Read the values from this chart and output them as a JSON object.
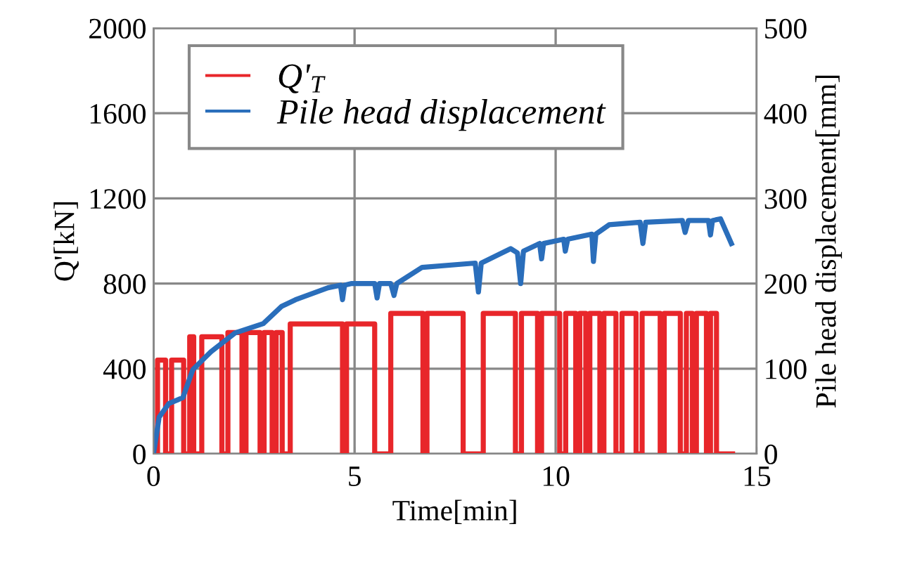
{
  "chart_data": {
    "type": "line",
    "xlabel": "Time[min]",
    "ylabel": "Q'[kN]",
    "y2label": "Pile head displacement[mm]",
    "xlim": [
      0,
      15
    ],
    "xticks": [
      0,
      5,
      10,
      15
    ],
    "ylim": [
      0,
      2000
    ],
    "yticks": [
      0,
      400,
      800,
      1200,
      1600,
      2000
    ],
    "y2lim": [
      0,
      500
    ],
    "y2ticks": [
      0,
      100,
      200,
      300,
      400,
      500
    ],
    "grid": true,
    "legend": "top left",
    "series": [
      {
        "name": "Q'$_{T}$",
        "color": "#e8262a",
        "type": "step",
        "x": [
          0,
          0.1,
          0.3,
          0.45,
          0.75,
          0.9,
          1.0,
          1.2,
          1.7,
          1.85,
          2.2,
          2.3,
          2.65,
          2.75,
          2.95,
          3.05,
          3.2,
          3.4,
          4.7,
          4.8,
          5.5,
          5.9,
          6.7,
          6.8,
          7.7,
          8.2,
          9.0,
          9.15,
          9.55,
          9.65,
          10.1,
          10.25,
          10.5,
          10.6,
          10.75,
          10.85,
          11.1,
          11.2,
          11.5,
          11.65,
          12.0,
          12.15,
          12.6,
          12.7,
          13.1,
          13.25,
          13.4,
          13.5,
          13.75,
          13.85,
          14.0,
          14.4
        ],
        "values": [
          0,
          440,
          0,
          440,
          0,
          550,
          0,
          550,
          0,
          570,
          0,
          570,
          0,
          570,
          0,
          570,
          0,
          610,
          0,
          610,
          0,
          660,
          0,
          660,
          0,
          660,
          0,
          660,
          0,
          660,
          0,
          660,
          0,
          660,
          0,
          660,
          0,
          660,
          0,
          660,
          0,
          660,
          0,
          660,
          0,
          660,
          0,
          660,
          0,
          660,
          0,
          0
        ]
      },
      {
        "name": "Pile head displacement",
        "color": "#2a6ebb",
        "axis": "y2",
        "x": [
          0,
          0.14,
          0.38,
          0.73,
          0.98,
          1.43,
          2.03,
          2.73,
          3.18,
          3.53,
          4.34,
          4.65,
          4.7,
          4.75,
          4.93,
          5.5,
          5.56,
          5.62,
          5.9,
          5.98,
          6.05,
          6.68,
          8.0,
          8.08,
          8.15,
          8.88,
          9.05,
          9.13,
          9.2,
          9.6,
          9.65,
          9.7,
          10.2,
          10.24,
          10.3,
          10.9,
          10.94,
          11.0,
          11.33,
          12.1,
          12.17,
          12.24,
          13.15,
          13.22,
          13.3,
          13.8,
          13.85,
          13.9,
          14.1,
          14.37
        ],
        "values": [
          0,
          43,
          59,
          66,
          99,
          120,
          142,
          153,
          173,
          181,
          195,
          198,
          181,
          198,
          200,
          200,
          183,
          200,
          200,
          186,
          200,
          219,
          224,
          190,
          224,
          241,
          236,
          200,
          238,
          247,
          229,
          247,
          252,
          238,
          252,
          258,
          226,
          258,
          269,
          272,
          247,
          272,
          274,
          260,
          274,
          274,
          257,
          274,
          276,
          247
        ]
      }
    ]
  }
}
